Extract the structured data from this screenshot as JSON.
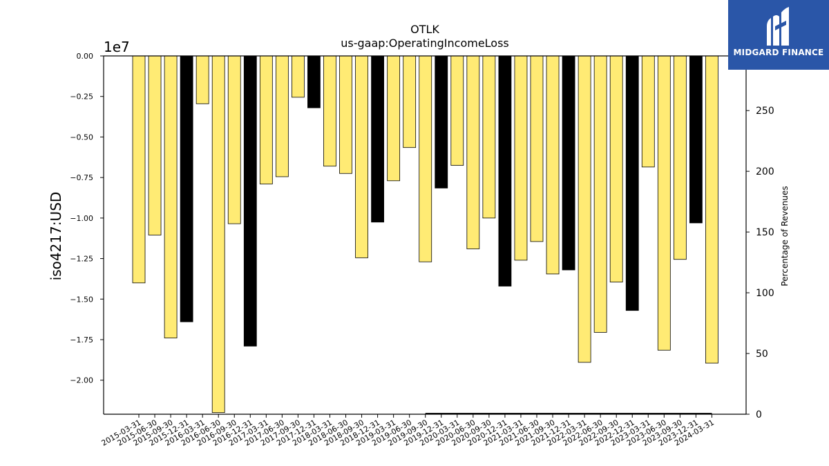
{
  "logo": {
    "text": "MIDGARD FINANCE",
    "icon": "midgard-logo-icon",
    "color": "#2a56a8"
  },
  "chart_data": {
    "type": "bar",
    "title": "OTLK",
    "subtitle": "us-gaap:OperatingIncomeLoss",
    "ylabel": "iso4217:USD",
    "y_offset_label": "1e7",
    "y2label": "Percentage of Revenues",
    "ylim": [
      -22100000,
      0
    ],
    "y2lim": [
      0,
      295
    ],
    "yticks": [
      "0.00",
      "−0.25",
      "−0.50",
      "−0.75",
      "−1.00",
      "−1.25",
      "−1.50",
      "−1.75",
      "−2.00"
    ],
    "y2ticks": [
      "0",
      "50",
      "100",
      "150",
      "200",
      "250"
    ],
    "colors": {
      "quarter": "#ffeb74",
      "annual": "#000000"
    },
    "categories": [
      "2015-03-31",
      "2015-06-30",
      "2015-09-30",
      "2015-12-31",
      "2016-03-31",
      "2016-06-30",
      "2016-09-30",
      "2016-12-31",
      "2017-03-31",
      "2017-06-30",
      "2017-09-30",
      "2017-12-31",
      "2018-03-31",
      "2018-06-30",
      "2018-09-30",
      "2018-12-31",
      "2019-03-31",
      "2019-06-30",
      "2019-09-30",
      "2019-12-31",
      "2020-03-31",
      "2020-06-30",
      "2020-09-30",
      "2020-12-31",
      "2021-03-31",
      "2021-06-30",
      "2021-09-30",
      "2021-12-31",
      "2022-03-31",
      "2022-06-30",
      "2022-09-30",
      "2022-12-31",
      "2023-03-31",
      "2023-06-30",
      "2023-09-30",
      "2023-12-31",
      "2024-03-31"
    ],
    "values": [
      -14000000,
      -11050000,
      -17400000,
      -16400000,
      -2950000,
      -22000000,
      -10350000,
      -17900000,
      -7900000,
      -7450000,
      -2550000,
      -3200000,
      -6800000,
      -7250000,
      -12450000,
      -10250000,
      -7700000,
      -5650000,
      -12700000,
      -8150000,
      -6750000,
      -11900000,
      -10000000,
      -14200000,
      -12600000,
      -11450000,
      -13450000,
      -13200000,
      -18900000,
      -17050000,
      -13950000,
      -15700000,
      -6850000,
      -18150000,
      -12550000,
      -10300000,
      -18950000
    ],
    "is_annual": [
      false,
      false,
      false,
      true,
      false,
      false,
      false,
      true,
      false,
      false,
      false,
      true,
      false,
      false,
      false,
      true,
      false,
      false,
      false,
      true,
      false,
      false,
      false,
      true,
      false,
      false,
      false,
      true,
      false,
      false,
      false,
      true,
      false,
      false,
      false,
      true,
      false
    ],
    "pct_revenue_line": {
      "from": "2019-09-30",
      "to": "2024-03-31",
      "value": 0.5
    }
  }
}
